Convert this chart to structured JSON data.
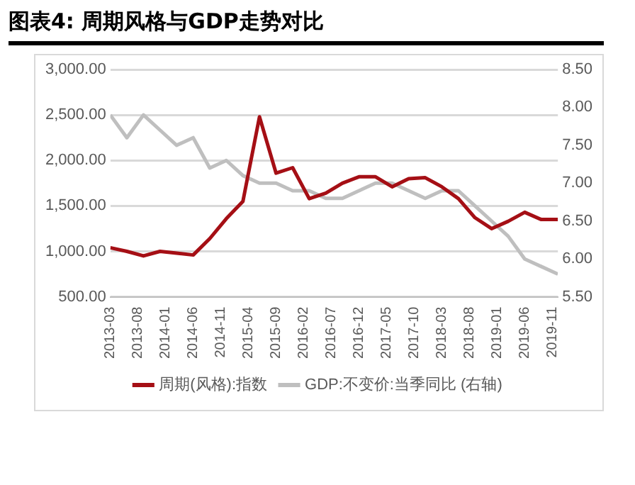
{
  "chart_data": {
    "type": "line",
    "title": "图表4:  周期风格与GDP走势对比",
    "x": [
      "2013-03",
      "2013-06",
      "2013-09",
      "2013-12",
      "2014-03",
      "2014-06",
      "2014-09",
      "2014-12",
      "2015-03",
      "2015-06",
      "2015-09",
      "2015-12",
      "2016-03",
      "2016-06",
      "2016-09",
      "2016-12",
      "2017-03",
      "2017-06",
      "2017-09",
      "2017-12",
      "2018-03",
      "2018-06",
      "2018-09",
      "2018-12",
      "2019-03",
      "2019-06",
      "2019-09",
      "2019-12"
    ],
    "series": [
      {
        "name": "周期(风格):指数",
        "color": "#a50f15",
        "values": [
          1040,
          1000,
          950,
          1000,
          980,
          960,
          1140,
          1360,
          1550,
          2480,
          1860,
          1920,
          1580,
          1640,
          1750,
          1820,
          1820,
          1710,
          1800,
          1810,
          1710,
          1580,
          1370,
          1250,
          1330,
          1430,
          1350,
          1350
        ]
      },
      {
        "name": "GDP:不变价:当季同比 (右轴)",
        "color": "#bfbfbf",
        "axis": "y2",
        "values": [
          7.9,
          7.6,
          7.9,
          7.7,
          7.5,
          7.6,
          7.2,
          7.3,
          7.1,
          7.0,
          7.0,
          6.9,
          6.9,
          6.8,
          6.8,
          6.9,
          7.0,
          7.0,
          6.9,
          6.8,
          6.9,
          6.9,
          6.7,
          6.5,
          6.3,
          6.0,
          5.9,
          5.8
        ]
      }
    ],
    "xlim": [
      "2013-03",
      "2019-12"
    ],
    "xticks": [
      "2013-03",
      "2013-08",
      "2014-01",
      "2014-06",
      "2014-11",
      "2015-04",
      "2015-09",
      "2016-02",
      "2016-07",
      "2016-12",
      "2017-05",
      "2017-10",
      "2018-03",
      "2018-08",
      "2019-01",
      "2019-06",
      "2019-11"
    ],
    "ylim": [
      500,
      3000
    ],
    "yticks": [
      {
        "value": 500,
        "label": "500.00"
      },
      {
        "value": 1000,
        "label": "1,000.00"
      },
      {
        "value": 1500,
        "label": "1,500.00"
      },
      {
        "value": 2000,
        "label": "2,000.00"
      },
      {
        "value": 2500,
        "label": "2,500.00"
      },
      {
        "value": 3000,
        "label": "3,000.00"
      }
    ],
    "y2lim": [
      5.5,
      8.5
    ],
    "y2ticks": [
      {
        "value": 5.5,
        "label": "5.50"
      },
      {
        "value": 6,
        "label": "6.00"
      },
      {
        "value": 6.5,
        "label": "6.50"
      },
      {
        "value": 7,
        "label": "7.00"
      },
      {
        "value": 7.5,
        "label": "7.50"
      },
      {
        "value": 8,
        "label": "8.00"
      },
      {
        "value": 8.5,
        "label": "8.50"
      }
    ],
    "grid": "y",
    "legend": "bottom",
    "marker": "none",
    "line_style": "solid"
  }
}
